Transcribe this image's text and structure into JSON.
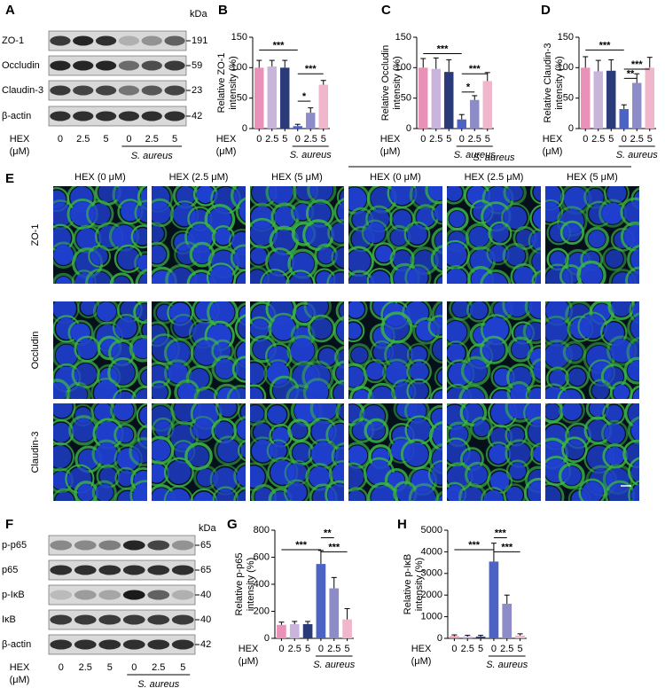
{
  "panel_letters": [
    "A",
    "B",
    "C",
    "D",
    "E",
    "F",
    "G",
    "H"
  ],
  "blot_a": {
    "kda": "kDa",
    "rows": [
      {
        "label": "ZO-1",
        "mw": "191"
      },
      {
        "label": "Occludin",
        "mw": "59"
      },
      {
        "label": "Claudin-3",
        "mw": "23"
      },
      {
        "label": "β-actin",
        "mw": "42"
      }
    ],
    "hex": "HEX",
    "unit": "(μM)",
    "lanes": [
      "0",
      "2.5",
      "5",
      "0",
      "2.5",
      "5"
    ],
    "group": "S. aureus"
  },
  "images_e": {
    "group": "S. aureus",
    "columns": [
      "HEX (0 μM)",
      "HEX (2.5 μM)",
      "HEX (5 μM)",
      "HEX (0 μM)",
      "HEX (2.5 μM)",
      "HEX (5 μM)"
    ],
    "rows": [
      "ZO-1",
      "Occludin",
      "Claudin-3"
    ]
  },
  "blot_f": {
    "kda": "kDa",
    "rows": [
      {
        "label": "p-p65",
        "mw": "65"
      },
      {
        "label": "p65",
        "mw": "65"
      },
      {
        "label": "p-IκB",
        "mw": "40"
      },
      {
        "label": "IκB",
        "mw": "40"
      },
      {
        "label": "β-actin",
        "mw": "42"
      }
    ],
    "hex": "HEX",
    "unit": "(μM)",
    "lanes": [
      "0",
      "2.5",
      "5",
      "0",
      "2.5",
      "5"
    ],
    "group": "S. aureus"
  },
  "chart_data": [
    {
      "type": "bar",
      "y_label": [
        "Relative ZO-1",
        "intensity (%)"
      ],
      "x_label": [
        "HEX",
        "(μM)"
      ],
      "group_label": "S. aureus",
      "categories": [
        "0",
        "2.5",
        "5",
        "0",
        "2.5",
        "5"
      ],
      "values": [
        100,
        102,
        100,
        4,
        26,
        72
      ],
      "errors": [
        12,
        10,
        12,
        3,
        8,
        7
      ],
      "colors": [
        "#e991b8",
        "#c9b4dc",
        "#2b3a78",
        "#4d63c4",
        "#8d8cc8",
        "#f0b6cb"
      ],
      "ylim": [
        0,
        150
      ],
      "yticks": [
        0,
        50,
        100,
        150
      ],
      "significance": [
        "***",
        "*",
        "***"
      ]
    },
    {
      "type": "bar",
      "y_label": [
        "Relative Occludin",
        "intensity (%)"
      ],
      "x_label": [
        "HEX",
        "(μM)"
      ],
      "group_label": "S. aureus",
      "categories": [
        "0",
        "2.5",
        "5",
        "0",
        "2.5",
        "5"
      ],
      "values": [
        100,
        98,
        93,
        15,
        47,
        78
      ],
      "errors": [
        15,
        18,
        20,
        8,
        7,
        14
      ],
      "colors": [
        "#e991b8",
        "#c9b4dc",
        "#2b3a78",
        "#4d63c4",
        "#8d8cc8",
        "#f0b6cb"
      ],
      "ylim": [
        0,
        150
      ],
      "yticks": [
        0,
        50,
        100,
        150
      ],
      "significance": [
        "***",
        "*",
        "***"
      ]
    },
    {
      "type": "bar",
      "y_label": [
        "Relative Claudin-3",
        "intensity (%)"
      ],
      "x_label": [
        "HEX",
        "(μM)"
      ],
      "group_label": "S. aureus",
      "categories": [
        "0",
        "2.5",
        "5",
        "0",
        "2.5",
        "5"
      ],
      "values": [
        100,
        94,
        95,
        32,
        75,
        100
      ],
      "errors": [
        18,
        18,
        18,
        7,
        15,
        17
      ],
      "colors": [
        "#e991b8",
        "#c9b4dc",
        "#2b3a78",
        "#4d63c4",
        "#8d8cc8",
        "#f0b6cb"
      ],
      "ylim": [
        0,
        150
      ],
      "yticks": [
        0,
        50,
        100,
        150
      ],
      "significance": [
        "***",
        "**",
        "***"
      ]
    },
    {
      "type": "bar",
      "y_label": [
        "Relative p-p65",
        "intensity (%)"
      ],
      "x_label": [
        "HEX",
        "(μM)"
      ],
      "group_label": "S. aureus",
      "categories": [
        "0",
        "2.5",
        "5",
        "0",
        "2.5",
        "5"
      ],
      "values": [
        100,
        105,
        105,
        550,
        370,
        140
      ],
      "errors": [
        20,
        20,
        20,
        100,
        80,
        80
      ],
      "colors": [
        "#e991b8",
        "#c9b4dc",
        "#2b3a78",
        "#4d63c4",
        "#8d8cc8",
        "#f0b6cb"
      ],
      "ylim": [
        0,
        800
      ],
      "yticks": [
        0,
        200,
        400,
        600,
        800
      ],
      "significance": [
        "***",
        "**",
        "***"
      ]
    },
    {
      "type": "bar",
      "y_label": [
        "Relative p-IκB",
        "intensity (%)"
      ],
      "x_label": [
        "HEX",
        "(μM)"
      ],
      "group_label": "S. aureus",
      "categories": [
        "0",
        "2.5",
        "5",
        "0",
        "2.5",
        "5"
      ],
      "values": [
        100,
        80,
        80,
        3550,
        1600,
        130
      ],
      "errors": [
        60,
        60,
        60,
        850,
        400,
        80
      ],
      "colors": [
        "#e991b8",
        "#c9b4dc",
        "#2b3a78",
        "#4d63c4",
        "#8d8cc8",
        "#f0b6cb"
      ],
      "ylim": [
        0,
        5000
      ],
      "yticks": [
        0,
        1000,
        2000,
        3000,
        4000,
        5000
      ],
      "significance": [
        "***",
        "***",
        "***"
      ]
    }
  ]
}
